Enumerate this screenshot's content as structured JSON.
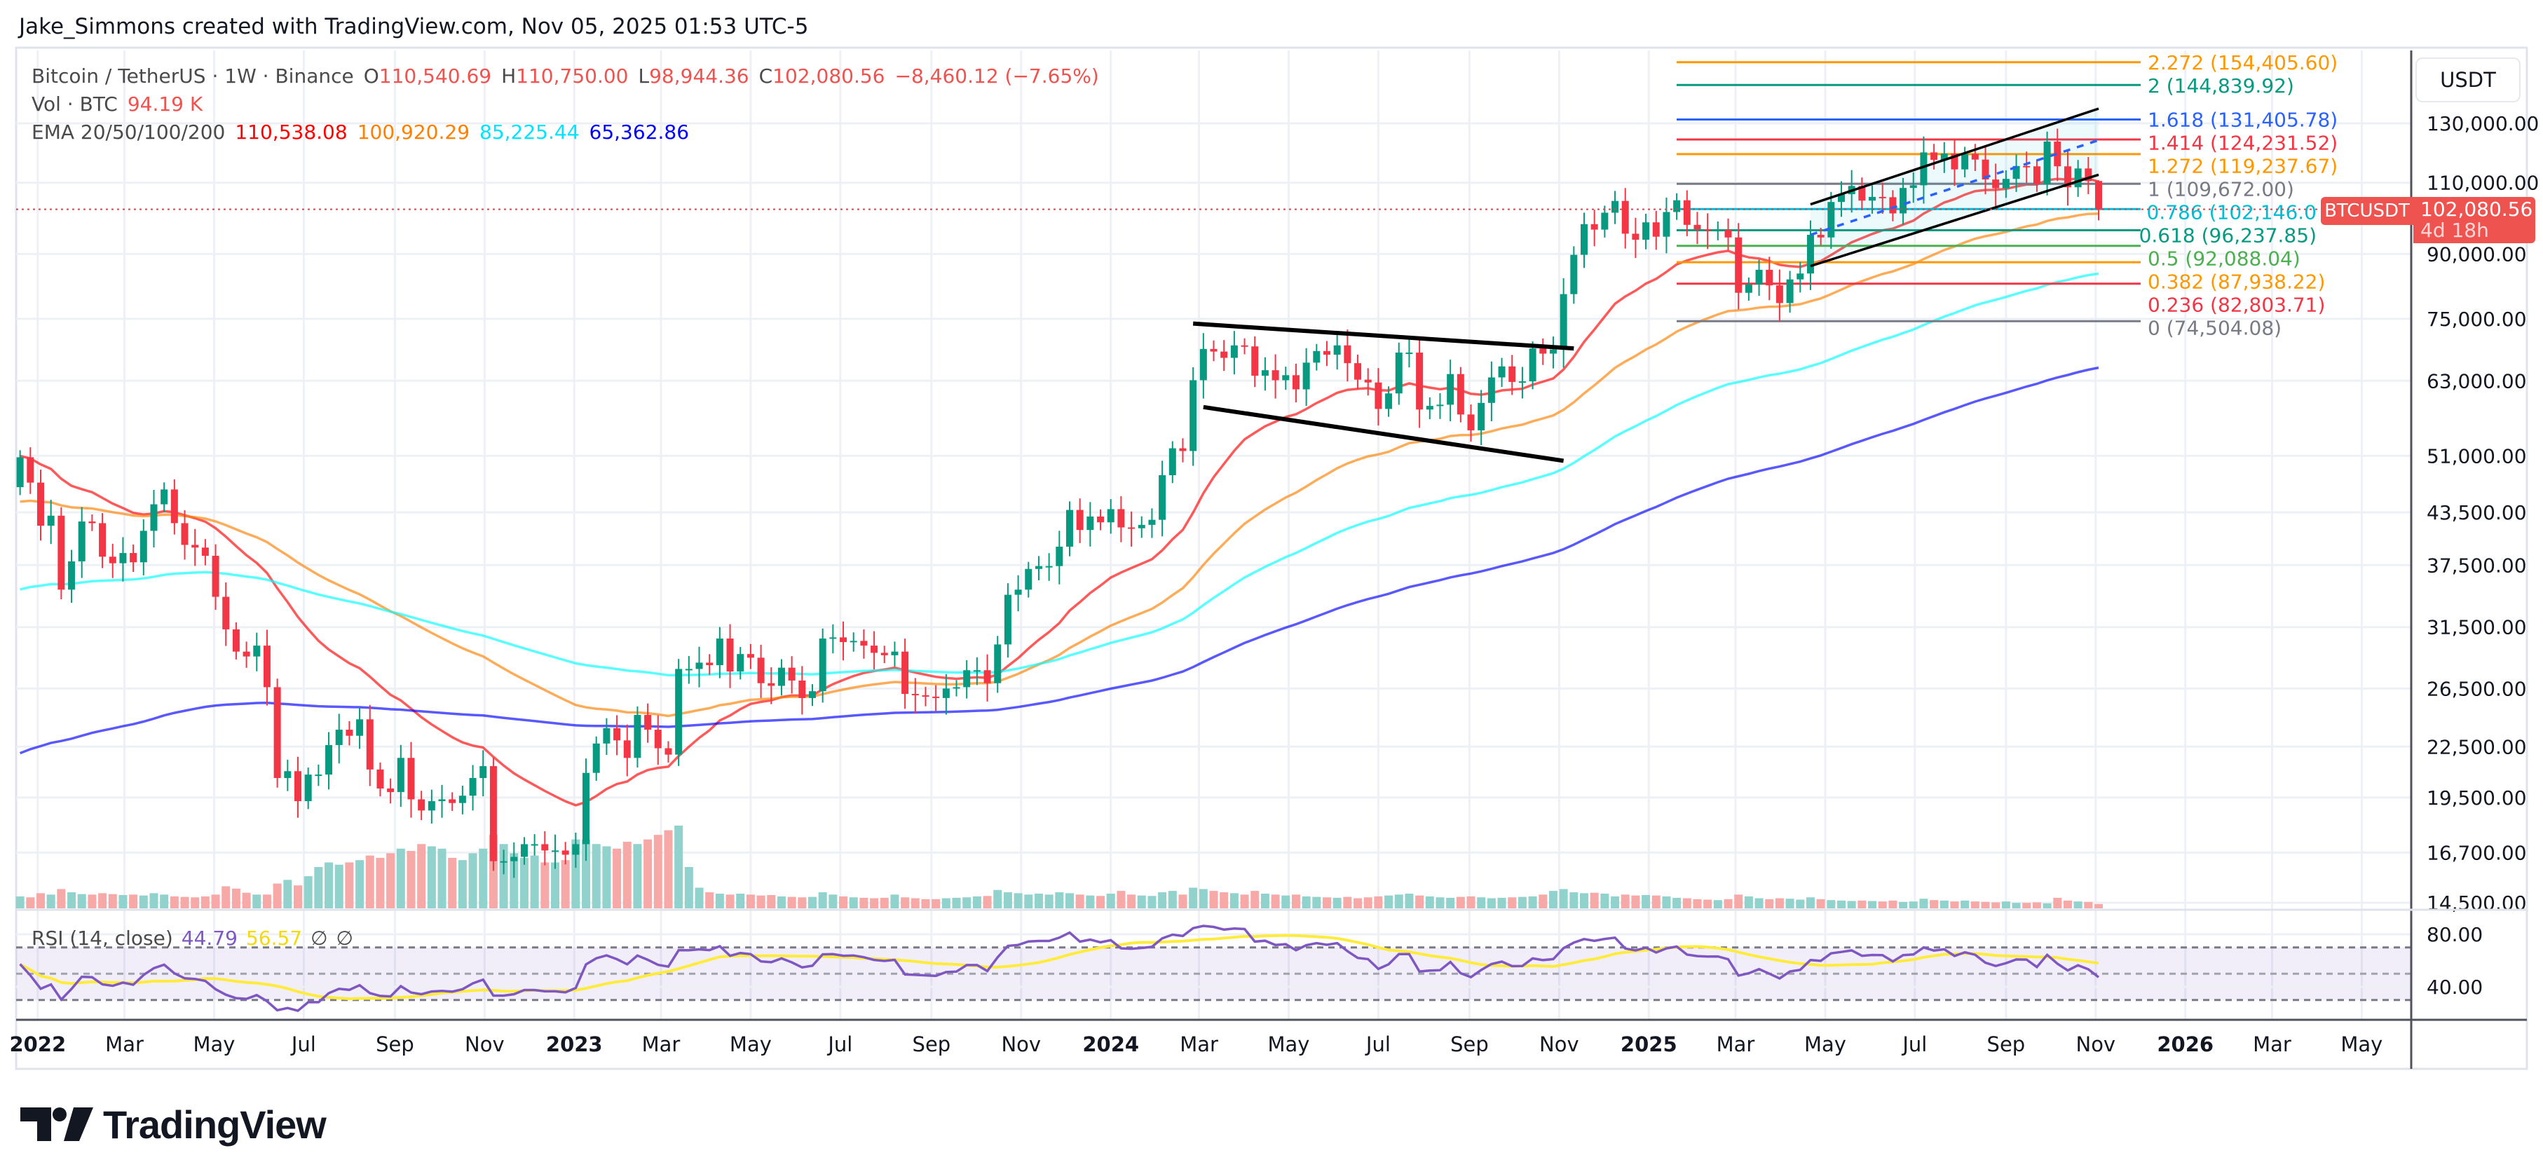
{
  "credit": "Jake_Simmons created with TradingView.com, Nov 05, 2025 01:53 UTC-5",
  "legend": {
    "symbol": "Bitcoin / TetherUS · 1W · Binance",
    "o_label": "O",
    "o": "110,540.69",
    "h_label": "H",
    "h": "110,750.00",
    "l_label": "L",
    "l": "98,944.36",
    "c_label": "C",
    "c": "102,080.56",
    "change": "−8,460.12 (−7.65%)",
    "vol_label": "Vol · BTC",
    "vol": "94.19 K",
    "ema_label": "EMA 20/50/100/200",
    "ema_values": [
      "110,538.08",
      "100,920.29",
      "85,225.44",
      "65,362.86"
    ]
  },
  "price_axis": {
    "currency": "USDT",
    "symbol_tag": "BTCUSDT",
    "last_price": "102,080.56",
    "countdown": "4d 18h"
  },
  "rsi_legend": {
    "label": "RSI (14, close)",
    "rsi": "44.79",
    "ma": "56.57",
    "e1": "∅",
    "e2": "∅"
  },
  "logo": {
    "text": "TradingView"
  },
  "colors": {
    "up": "#089981",
    "down": "#f23645",
    "vol_up": "#92d2cc",
    "vol_down": "#f7a9a7",
    "ema20": "#ff0000",
    "ema50": "#ff8000",
    "ema100": "#00ffff",
    "ema200": "#0000ff",
    "rsi": "#7e57c2",
    "rsi_ma": "#ffeb3b",
    "grid": "#edf0f5"
  },
  "chart_data": {
    "type": "candlestick",
    "symbol": "BTCUSDT",
    "interval": "1W",
    "first_week": "2021-12-20",
    "y_scale": "log",
    "ylim": [
      14000,
      165000
    ],
    "grid": true,
    "y_ticks": [
      130000,
      110000,
      90000,
      75000,
      63000,
      51000,
      43500,
      37500,
      31500,
      26500,
      22500,
      19500,
      16700,
      14500
    ],
    "y_tick_labels": [
      "130,000.00",
      "110,000.00",
      "90,000.00",
      "75,000.00",
      "63,000.00",
      "51,000.00",
      "43,500.00",
      "37,500.00",
      "31,500.00",
      "26,500.00",
      "22,500.00",
      "19,500.00",
      "16,700.00",
      "14,500.00"
    ],
    "x_ticks": [
      {
        "label": "2022",
        "date": "2022-01-01",
        "bold": true
      },
      {
        "label": "Mar",
        "date": "2022-03-01"
      },
      {
        "label": "May",
        "date": "2022-05-01"
      },
      {
        "label": "Jul",
        "date": "2022-07-01"
      },
      {
        "label": "Sep",
        "date": "2022-09-01"
      },
      {
        "label": "Nov",
        "date": "2022-11-01"
      },
      {
        "label": "2023",
        "date": "2023-01-01",
        "bold": true
      },
      {
        "label": "Mar",
        "date": "2023-03-01"
      },
      {
        "label": "May",
        "date": "2023-05-01"
      },
      {
        "label": "Jul",
        "date": "2023-07-01"
      },
      {
        "label": "Sep",
        "date": "2023-09-01"
      },
      {
        "label": "Nov",
        "date": "2023-11-01"
      },
      {
        "label": "2024",
        "date": "2024-01-01",
        "bold": true
      },
      {
        "label": "Mar",
        "date": "2024-03-01"
      },
      {
        "label": "May",
        "date": "2024-05-01"
      },
      {
        "label": "Jul",
        "date": "2024-07-01"
      },
      {
        "label": "Sep",
        "date": "2024-09-01"
      },
      {
        "label": "Nov",
        "date": "2024-11-01"
      },
      {
        "label": "2025",
        "date": "2025-01-01",
        "bold": true
      },
      {
        "label": "Mar",
        "date": "2025-03-01"
      },
      {
        "label": "May",
        "date": "2025-05-01"
      },
      {
        "label": "Jul",
        "date": "2025-07-01"
      },
      {
        "label": "Sep",
        "date": "2025-09-01"
      },
      {
        "label": "Nov",
        "date": "2025-11-01"
      },
      {
        "label": "2026",
        "date": "2026-01-01",
        "bold": true
      },
      {
        "label": "Mar",
        "date": "2026-03-01"
      },
      {
        "label": "May",
        "date": "2026-05-01"
      }
    ],
    "first_open": 46700,
    "weekly_close": [
      50800,
      47300,
      41900,
      43100,
      35000,
      37900,
      42400,
      42200,
      38400,
      37700,
      38800,
      37800,
      41300,
      44500,
      46400,
      42200,
      39700,
      39400,
      38500,
      34300,
      31300,
      29400,
      29000,
      29900,
      26600,
      20600,
      21000,
      19300,
      20800,
      20800,
      22600,
      23600,
      23200,
      24300,
      21100,
      20000,
      19800,
      21800,
      19400,
      18800,
      19300,
      19400,
      19200,
      19600,
      20600,
      21300,
      16300,
      16300,
      16500,
      17100,
      17100,
      16800,
      16800,
      16600,
      17100,
      20900,
      22700,
      23700,
      22900,
      21800,
      24600,
      23600,
      22400,
      22000,
      28000,
      28000,
      28500,
      28300,
      30500,
      27800,
      29200,
      28900,
      26900,
      26700,
      28100,
      27100,
      25800,
      26300,
      30500,
      30600,
      30200,
      30300,
      29900,
      29300,
      29100,
      29400,
      26100,
      26000,
      25900,
      25800,
      26500,
      26600,
      27900,
      27900,
      26900,
      30000,
      34500,
      35000,
      37100,
      37400,
      37400,
      39500,
      43800,
      41400,
      43000,
      42300,
      43900,
      41700,
      41600,
      42000,
      42600,
      48300,
      52100,
      51700,
      63100,
      68900,
      68400,
      67200,
      69600,
      69400,
      63900,
      64900,
      63100,
      64000,
      61500,
      66300,
      68500,
      67800,
      69600,
      66200,
      63200,
      62700,
      58200,
      60800,
      68200,
      68200,
      58100,
      58700,
      58900,
      64200,
      57300,
      54800,
      59200,
      63600,
      65600,
      62800,
      62900,
      69000,
      68000,
      68800,
      80400,
      89800,
      97900,
      96400,
      101100,
      104500,
      95300,
      93700,
      98400,
      94500,
      101300,
      104700,
      97700,
      96500,
      96100,
      96300,
      94300,
      80700,
      82600,
      86100,
      82400,
      78400,
      83800,
      85200,
      95000,
      94300,
      104200,
      106500,
      109000,
      104600,
      105700,
      105600,
      100900,
      108400,
      109200,
      119800,
      117300,
      119400,
      114200,
      119300,
      117400,
      111000,
      108300,
      111200,
      115300,
      115200,
      109600,
      123500,
      115200,
      108600,
      114500,
      110500,
      102080.56
    ],
    "last_candle": {
      "open": 110540.69,
      "high": 110750.0,
      "low": 98944.36,
      "close": 102080.56
    },
    "volume_k": [
      260,
      240,
      330,
      300,
      420,
      350,
      310,
      300,
      330,
      310,
      290,
      300,
      280,
      330,
      300,
      260,
      250,
      240,
      260,
      300,
      480,
      430,
      340,
      300,
      300,
      540,
      620,
      500,
      700,
      900,
      1000,
      950,
      1000,
      1050,
      1150,
      1100,
      1200,
      1300,
      1250,
      1400,
      1350,
      1300,
      1100,
      1050,
      1200,
      1300,
      1600,
      1400,
      1200,
      1100,
      1150,
      1000,
      1000,
      1050,
      1500,
      1500,
      1400,
      1350,
      1300,
      1450,
      1400,
      1500,
      1600,
      1700,
      1800,
      900,
      450,
      350,
      320,
      300,
      320,
      300,
      280,
      290,
      260,
      250,
      240,
      250,
      350,
      300,
      260,
      240,
      230,
      220,
      230,
      300,
      240,
      220,
      200,
      200,
      220,
      230,
      240,
      260,
      270,
      400,
      350,
      330,
      300,
      320,
      300,
      350,
      330,
      300,
      280,
      270,
      320,
      380,
      300,
      280,
      270,
      350,
      380,
      300,
      450,
      420,
      380,
      350,
      330,
      300,
      380,
      320,
      300,
      280,
      300,
      260,
      250,
      240,
      230,
      250,
      220,
      240,
      260,
      280,
      300,
      320,
      280,
      260,
      240,
      230,
      250,
      260,
      240,
      220,
      230,
      240,
      250,
      260,
      300,
      380,
      420,
      350,
      330,
      340,
      320,
      260,
      300,
      280,
      290,
      280,
      260,
      230,
      220,
      200,
      190,
      180,
      200,
      300,
      260,
      220,
      200,
      220,
      210,
      190,
      240,
      200,
      180,
      170,
      160,
      170,
      160,
      150,
      170,
      140,
      150,
      210,
      180,
      170,
      150,
      170,
      150,
      140,
      130,
      150,
      120,
      120,
      130,
      110,
      230,
      170,
      150,
      140,
      94.19
    ],
    "ema_periods": [
      20,
      50,
      100,
      200
    ],
    "ema_left_edge_values": [
      51000,
      44600,
      34700,
      21800
    ],
    "rsi": {
      "period": 14,
      "ma_period": 14,
      "levels": [
        70,
        50,
        30
      ],
      "y_ticks": [
        "80.00",
        "40.00"
      ]
    },
    "fib_levels": [
      {
        "ratio": "2.272",
        "price": 154405.6,
        "label": "2.272 (154,405.60)",
        "color": "#ff9800"
      },
      {
        "ratio": "2",
        "price": 144839.92,
        "label": "2 (144,839.92)",
        "color": "#089981"
      },
      {
        "ratio": "1.618",
        "price": 131405.78,
        "label": "1.618 (131,405.78)",
        "color": "#2962ff"
      },
      {
        "ratio": "1.414",
        "price": 124231.52,
        "label": "1.414 (124,231.52)",
        "color": "#f23645"
      },
      {
        "ratio": "1.272",
        "price": 119237.67,
        "label": "1.272 (119,237.67)",
        "color": "#ff9800"
      },
      {
        "ratio": "1",
        "price": 109672.0,
        "label": "1 (109,672.00)",
        "color": "#787b86"
      },
      {
        "ratio": "0.786",
        "price": 102146.0,
        "label": "0.786 (102,146.0",
        "color": "#00bcd4"
      },
      {
        "ratio": "0.618",
        "price": 96237.85,
        "label": "0.618 (96,237.85)",
        "color": "#089981"
      },
      {
        "ratio": "0.5",
        "price": 92088.04,
        "label": "0.5 (92,088.04)",
        "color": "#4caf50"
      },
      {
        "ratio": "0.382",
        "price": 87938.22,
        "label": "0.382 (87,938.22)",
        "color": "#ff9800"
      },
      {
        "ratio": "0.236",
        "price": 82803.71,
        "label": "0.236 (82,803.71)",
        "color": "#f23645"
      },
      {
        "ratio": "0",
        "price": 74504.08,
        "label": "0 (74,504.08)",
        "color": "#787b86"
      }
    ],
    "fib_from": "2024-12-02",
    "fib_to": "2025-11-03",
    "trendlines": [
      {
        "name": "descending-channel-upper",
        "from": {
          "date": "2024-02-26",
          "price": 74000
        },
        "to": {
          "date": "2024-11-11",
          "price": 69000
        }
      },
      {
        "name": "descending-channel-lower",
        "from": {
          "date": "2024-03-04",
          "price": 58500
        },
        "to": {
          "date": "2024-11-04",
          "price": 50300
        }
      },
      {
        "name": "ascending-channel-upper",
        "from": {
          "date": "2025-04-21",
          "price": 103500
        },
        "to": {
          "date": "2025-11-03",
          "price": 135500
        }
      },
      {
        "name": "ascending-channel-lower",
        "from": {
          "date": "2025-04-21",
          "price": 87000
        },
        "to": {
          "date": "2025-11-03",
          "price": 112500
        }
      },
      {
        "name": "ascending-channel-mid",
        "from": {
          "date": "2025-04-21",
          "price": 95000
        },
        "to": {
          "date": "2025-11-03",
          "price": 124000
        },
        "dashed": true
      }
    ]
  }
}
